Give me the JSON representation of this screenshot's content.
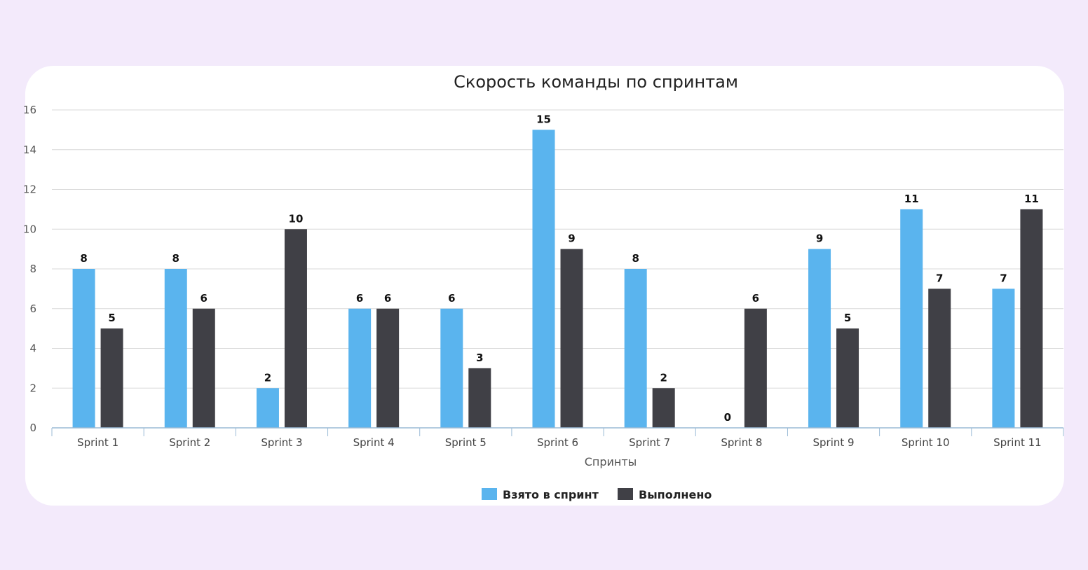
{
  "chart_data": {
    "type": "bar",
    "title": "Скорость команды по спринтам",
    "xlabel": "Спринты",
    "ylabel": "",
    "ylim": [
      0,
      16
    ],
    "yticks": [
      0,
      2,
      4,
      6,
      8,
      10,
      12,
      14,
      16
    ],
    "grid": true,
    "legend_position": "bottom-center",
    "categories": [
      "Sprint 1",
      "Sprint 2",
      "Sprint 3",
      "Sprint 4",
      "Sprint 5",
      "Sprint 6",
      "Sprint 7",
      "Sprint 8",
      "Sprint 9",
      "Sprint 10",
      "Sprint 11"
    ],
    "series": [
      {
        "name": "Взято в спринт",
        "color": "#5ab4ee",
        "values": [
          8,
          8,
          2,
          6,
          6,
          15,
          8,
          0,
          9,
          11,
          7
        ]
      },
      {
        "name": "Выполнено",
        "color": "#404046",
        "values": [
          5,
          6,
          10,
          6,
          3,
          9,
          2,
          6,
          5,
          7,
          11
        ]
      }
    ]
  }
}
